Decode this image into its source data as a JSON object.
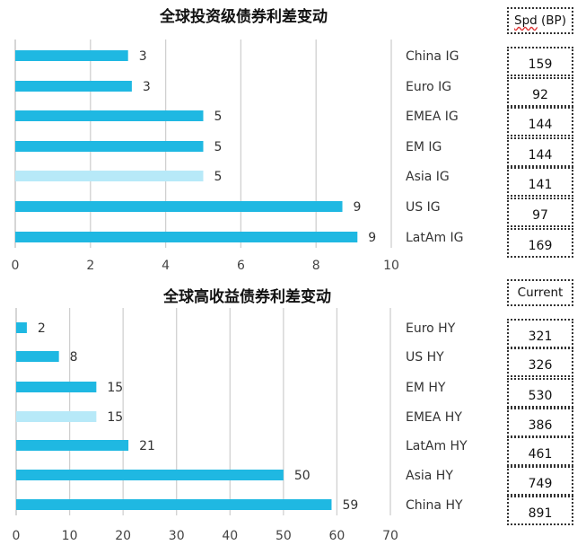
{
  "colors": {
    "bar": "#1fb8e2",
    "bar_highlight": "#b7e9f8",
    "grid": "#d0d0d0",
    "axis": "#bfbfbf"
  },
  "chart_data": [
    {
      "type": "bar",
      "orientation": "horizontal",
      "title": "全球投资级债券利差变动",
      "categories": [
        "China IG",
        "Euro IG",
        "EMEA IG",
        "EM IG",
        "Asia IG",
        "US IG",
        "LatAm IG"
      ],
      "values": [
        3,
        3,
        5,
        5,
        5,
        9,
        9
      ],
      "bar_lengths": [
        3.0,
        3.1,
        5.0,
        5.0,
        5.0,
        8.7,
        9.1
      ],
      "highlight_index": 4,
      "xlim": [
        0,
        10
      ],
      "xticks": [
        "0",
        "2",
        "4",
        "6",
        "8",
        "10"
      ],
      "table_header": "Spd (BP)",
      "table_values": [
        "159",
        "92",
        "144",
        "144",
        "141",
        "97",
        "169"
      ],
      "grid": true
    },
    {
      "type": "bar",
      "orientation": "horizontal",
      "title": "全球高收益债券利差变动",
      "categories": [
        "Euro HY",
        "US HY",
        "EM HY",
        "EMEA HY",
        "LatAm HY",
        "Asia HY",
        "China HY"
      ],
      "values": [
        2,
        8,
        15,
        15,
        21,
        50,
        59
      ],
      "highlight_index": 3,
      "xlim": [
        0,
        70
      ],
      "xticks": [
        "0",
        "10",
        "20",
        "30",
        "40",
        "50",
        "60",
        "70"
      ],
      "table_header": "Current",
      "table_values": [
        "321",
        "326",
        "530",
        "386",
        "461",
        "749",
        "891"
      ],
      "grid": true
    }
  ]
}
